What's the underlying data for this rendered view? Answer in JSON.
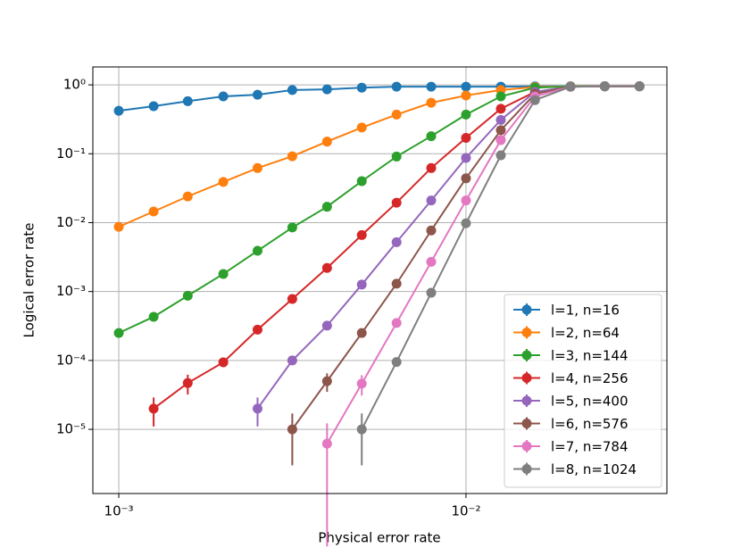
{
  "chart_data": {
    "type": "line",
    "xlabel": "Physical error rate",
    "ylabel": "Logical error rate",
    "xscale": "log",
    "yscale": "log",
    "grid": true,
    "legend": "lower right",
    "x": [
      0.001,
      0.00126,
      0.00158,
      0.002,
      0.00251,
      0.00316,
      0.00398,
      0.00501,
      0.00631,
      0.00794,
      0.01,
      0.0126,
      0.0158,
      0.02,
      0.0251,
      0.0316
    ],
    "xlim": [
      0.000842,
      0.0379
    ],
    "ylim": [
      1.17e-06,
      1.82
    ],
    "xticks": [
      {
        "value": 0.001,
        "label": "10⁻³"
      },
      {
        "value": 0.01,
        "label": "10⁻²"
      }
    ],
    "yticks": [
      {
        "value": 1e-05,
        "label": "10⁻⁵"
      },
      {
        "value": 0.0001,
        "label": "10⁻⁴"
      },
      {
        "value": 0.001,
        "label": "10⁻³"
      },
      {
        "value": 0.01,
        "label": "10⁻²"
      },
      {
        "value": 0.1,
        "label": "10⁻¹"
      },
      {
        "value": 1,
        "label": "10⁰"
      }
    ],
    "series": [
      {
        "name": "l=1, n=16",
        "color": "#1f77b4",
        "values": [
          0.42,
          0.49,
          0.58,
          0.68,
          0.72,
          0.84,
          0.86,
          0.91,
          0.94,
          0.94,
          0.94,
          0.94,
          0.95,
          0.95,
          0.96,
          0.96
        ],
        "errors": [
          null,
          null,
          null,
          null,
          null,
          null,
          null,
          null,
          null,
          null,
          null,
          null,
          null,
          null,
          null,
          null
        ]
      },
      {
        "name": "l=2, n=64",
        "color": "#ff7f0e",
        "values": [
          0.0087,
          0.0145,
          0.024,
          0.039,
          0.062,
          0.092,
          0.15,
          0.24,
          0.37,
          0.55,
          0.7,
          0.84,
          0.93,
          0.95,
          0.95,
          0.95
        ],
        "errors": [
          null,
          null,
          null,
          null,
          null,
          null,
          null,
          null,
          null,
          null,
          null,
          null,
          null,
          null,
          null,
          null
        ]
      },
      {
        "name": "l=3, n=144",
        "color": "#2ca02c",
        "values": [
          0.00025,
          0.00043,
          0.00087,
          0.0018,
          0.0039,
          0.0085,
          0.017,
          0.04,
          0.091,
          0.18,
          0.37,
          0.68,
          0.91,
          0.95,
          0.95,
          0.95
        ],
        "errors": [
          null,
          null,
          null,
          null,
          null,
          null,
          null,
          null,
          null,
          null,
          null,
          null,
          null,
          null,
          null,
          null
        ]
      },
      {
        "name": "l=4, n=256",
        "color": "#d62728",
        "values": [
          null,
          2e-05,
          4.7e-05,
          9.4e-05,
          0.00028,
          0.00078,
          0.0022,
          0.0066,
          0.0195,
          0.062,
          0.17,
          0.45,
          0.79,
          0.94,
          0.95,
          0.95
        ],
        "errors": [
          null,
          9e-06,
          1.5e-05,
          null,
          null,
          null,
          null,
          null,
          null,
          null,
          null,
          null,
          null,
          null,
          null,
          null
        ]
      },
      {
        "name": "l=5, n=400",
        "color": "#9467bd",
        "values": [
          null,
          null,
          null,
          null,
          2e-05,
          0.0001,
          0.00032,
          0.00126,
          0.0052,
          0.021,
          0.087,
          0.31,
          0.79,
          0.94,
          0.95,
          0.95
        ],
        "errors": [
          null,
          null,
          null,
          null,
          9e-06,
          null,
          null,
          null,
          null,
          null,
          null,
          null,
          null,
          null,
          null,
          null
        ]
      },
      {
        "name": "l=6, n=576",
        "color": "#8c564b",
        "values": [
          null,
          null,
          null,
          null,
          null,
          1e-05,
          5e-05,
          0.00025,
          0.0013,
          0.0077,
          0.044,
          0.22,
          0.74,
          0.94,
          0.95,
          0.95
        ],
        "errors": [
          null,
          null,
          null,
          null,
          null,
          7e-06,
          1.5e-05,
          null,
          null,
          null,
          null,
          null,
          null,
          null,
          null,
          null
        ]
      },
      {
        "name": "l=7, n=784",
        "color": "#e377c2",
        "values": [
          null,
          null,
          null,
          null,
          null,
          null,
          6.2e-06,
          4.6e-05,
          0.00035,
          0.0027,
          0.021,
          0.158,
          0.68,
          0.94,
          0.95,
          0.95
        ],
        "errors": [
          null,
          null,
          null,
          null,
          null,
          null,
          6e-06,
          1.5e-05,
          null,
          null,
          null,
          null,
          null,
          null,
          null,
          null
        ]
      },
      {
        "name": "l=8, n=1024",
        "color": "#7f7f7f",
        "values": [
          null,
          null,
          null,
          null,
          null,
          null,
          null,
          1e-05,
          9.5e-05,
          0.00096,
          0.0098,
          0.095,
          0.6,
          0.94,
          0.95,
          0.95
        ],
        "errors": [
          null,
          null,
          null,
          null,
          null,
          null,
          null,
          7e-06,
          null,
          null,
          null,
          null,
          null,
          null,
          null,
          null
        ]
      }
    ]
  }
}
